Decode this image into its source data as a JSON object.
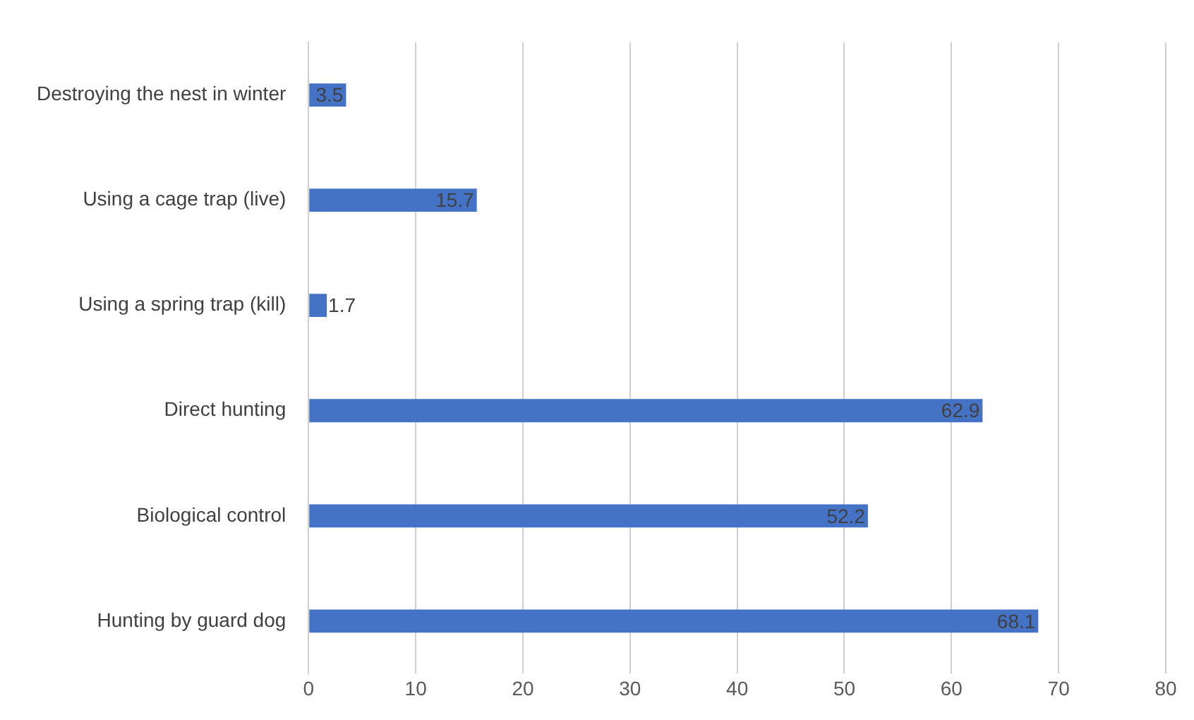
{
  "chart_data": {
    "type": "bar",
    "orientation": "horizontal",
    "categories": [
      "Destroying the nest in winter",
      "Using a cage trap (live)",
      "Using a spring trap (kill)",
      "Direct hunting",
      "Biological control",
      "Hunting by guard dog"
    ],
    "values": [
      3.5,
      15.7,
      1.7,
      62.9,
      52.2,
      68.1
    ],
    "color": "#4472c4",
    "xlim": [
      0,
      80
    ],
    "xticks": [
      0,
      10,
      20,
      30,
      40,
      50,
      60,
      70,
      80
    ],
    "grid": "x",
    "data_labels": true,
    "legend": false
  }
}
